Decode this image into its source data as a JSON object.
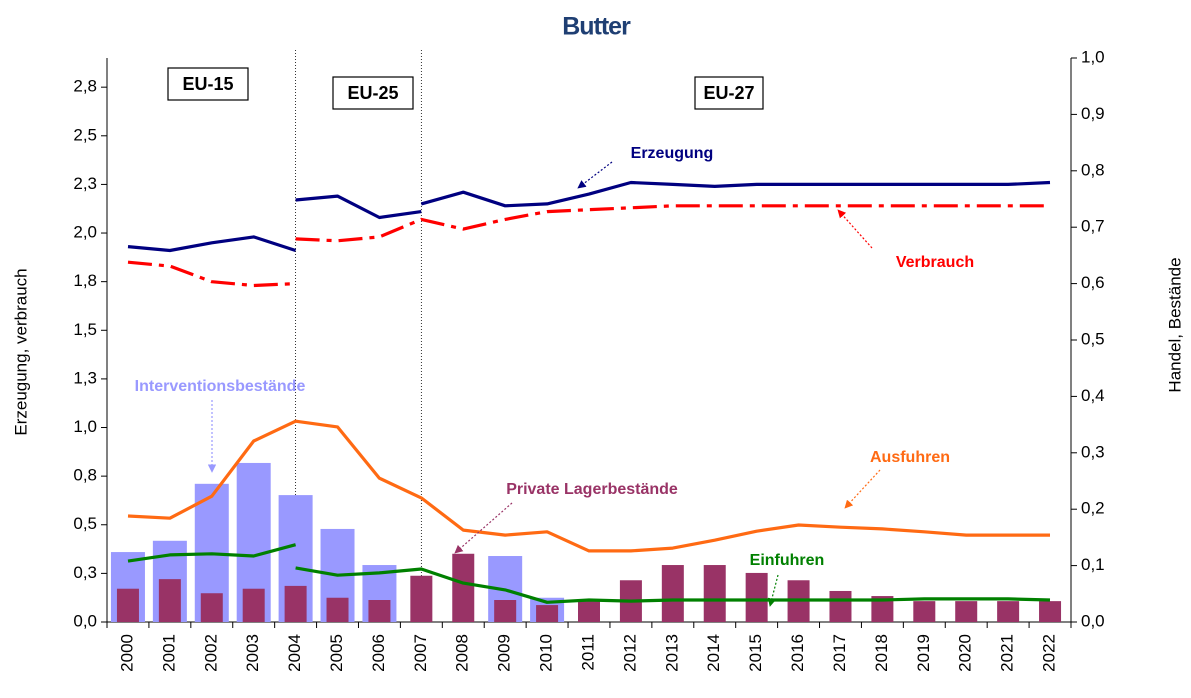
{
  "chart_data": {
    "type": "combo",
    "title": "Butter",
    "ylabel": "Erzeugung, verbrauch",
    "y2label": "Handel, Bestände",
    "periods": [
      "EU-15",
      "EU-25",
      "EU-27"
    ],
    "categories": [
      "2000",
      "2001",
      "2002",
      "2003",
      "2004",
      "2005",
      "2006",
      "2007",
      "2008",
      "2009",
      "2010",
      "2011",
      "2012",
      "2013",
      "2014",
      "2015",
      "2016",
      "2017",
      "2018",
      "2019",
      "2020",
      "2021",
      "2022"
    ],
    "ylim": [
      0,
      2.9
    ],
    "yticks": [
      {
        "value": 0,
        "label": "0,0"
      },
      {
        "value": 0.25,
        "label": "0,3"
      },
      {
        "value": 0.5,
        "label": "0,5"
      },
      {
        "value": 0.75,
        "label": "0,8"
      },
      {
        "value": 1,
        "label": "1,0"
      },
      {
        "value": 1.25,
        "label": "1,3"
      },
      {
        "value": 1.5,
        "label": "1,5"
      },
      {
        "value": 1.75,
        "label": "1,8"
      },
      {
        "value": 2,
        "label": "2,0"
      },
      {
        "value": 2.25,
        "label": "2,3"
      },
      {
        "value": 2.5,
        "label": "2,5"
      },
      {
        "value": 2.75,
        "label": "2,8"
      }
    ],
    "y2lim": [
      0,
      1
    ],
    "y2ticks": [
      {
        "value": 0,
        "label": "0,0"
      },
      {
        "value": 0.1,
        "label": "0,1"
      },
      {
        "value": 0.2,
        "label": "0,2"
      },
      {
        "value": 0.3,
        "label": "0,3"
      },
      {
        "value": 0.4,
        "label": "0,4"
      },
      {
        "value": 0.5,
        "label": "0,5"
      },
      {
        "value": 0.6,
        "label": "0,6"
      },
      {
        "value": 0.7,
        "label": "0,7"
      },
      {
        "value": 0.8,
        "label": "0,8"
      },
      {
        "value": 0.9,
        "label": "0,9"
      },
      {
        "value": 1,
        "label": "1,0"
      }
    ],
    "series": [
      {
        "name": "Interventionsbestände",
        "type": "bar",
        "axis": "y2",
        "color": "#9999ff",
        "values": [
          0.124,
          0.144,
          0.245,
          0.282,
          0.225,
          0.165,
          0.101,
          0,
          0,
          0.117,
          0.043,
          0,
          0,
          0,
          0,
          0,
          0,
          0,
          0,
          0,
          0,
          0,
          0
        ]
      },
      {
        "name": "Private Lagerbestände",
        "type": "bar",
        "axis": "y2",
        "color": "#993366",
        "values": [
          0.059,
          0.076,
          0.051,
          0.059,
          0.064,
          0.043,
          0.039,
          0.082,
          0.121,
          0.039,
          0.03,
          0.039,
          0.074,
          0.101,
          0.101,
          0.087,
          0.074,
          0.055,
          0.046,
          0.037,
          0.037,
          0.037,
          0.037
        ]
      },
      {
        "name": "Erzeugung",
        "type": "line",
        "axis": "y",
        "color": "#000080",
        "line_style": "solid",
        "values": [
          [
            1.93,
            1.91,
            1.95,
            1.98,
            1.91,
            null,
            null,
            null,
            null,
            null,
            null,
            null,
            null,
            null,
            null,
            null,
            null,
            null,
            null,
            null,
            null,
            null,
            null
          ],
          [
            null,
            null,
            null,
            null,
            2.17,
            2.19,
            2.08,
            2.11,
            null,
            null,
            null,
            null,
            null,
            null,
            null,
            null,
            null,
            null,
            null,
            null,
            null,
            null,
            null
          ],
          [
            null,
            null,
            null,
            null,
            null,
            null,
            null,
            2.15,
            2.21,
            2.14,
            2.15,
            2.2,
            2.26,
            2.25,
            2.24,
            2.25,
            2.25,
            2.25,
            2.25,
            2.25,
            2.25,
            2.25,
            2.26
          ]
        ]
      },
      {
        "name": "Verbrauch",
        "type": "line",
        "axis": "y",
        "color": "#ff0000",
        "line_style": "dash-dot",
        "values": [
          [
            1.85,
            1.83,
            1.75,
            1.73,
            1.74,
            null,
            null,
            null,
            null,
            null,
            null,
            null,
            null,
            null,
            null,
            null,
            null,
            null,
            null,
            null,
            null,
            null,
            null
          ],
          [
            null,
            null,
            null,
            null,
            1.97,
            1.96,
            1.98,
            2.07,
            2.02,
            2.07,
            2.11,
            2.12,
            2.13,
            2.14,
            2.14,
            2.14,
            2.14,
            2.14,
            2.14,
            2.14,
            2.14,
            2.14,
            2.14
          ]
        ]
      },
      {
        "name": "Ausfuhren",
        "type": "line",
        "axis": "y2",
        "color": "#ff6a13",
        "line_style": "solid",
        "values": [
          [
            0.188,
            0.184,
            0.223,
            0.321,
            0.356,
            0.346,
            0.255,
            0.22,
            0.163,
            0.154,
            0.16,
            0.126,
            0.126,
            0.131,
            0.145,
            0.161,
            0.172,
            0.168,
            0.165,
            0.16,
            0.154,
            0.154,
            0.154
          ]
        ]
      },
      {
        "name": "Einfuhren",
        "type": "line",
        "axis": "y2",
        "color": "#008000",
        "line_style": "solid",
        "values": [
          [
            0.108,
            0.119,
            0.121,
            0.117,
            0.137,
            null,
            null,
            null,
            null,
            null,
            null,
            null,
            null,
            null,
            null,
            null,
            null,
            null,
            null,
            null,
            null,
            null,
            null
          ],
          [
            null,
            null,
            null,
            null,
            0.096,
            0.083,
            0.087,
            0.094,
            0.069,
            0.057,
            0.035,
            0.039,
            0.037,
            0.039,
            0.039,
            0.039,
            0.039,
            0.039,
            0.039,
            0.041,
            0.041,
            0.041,
            0.039
          ]
        ]
      }
    ]
  }
}
